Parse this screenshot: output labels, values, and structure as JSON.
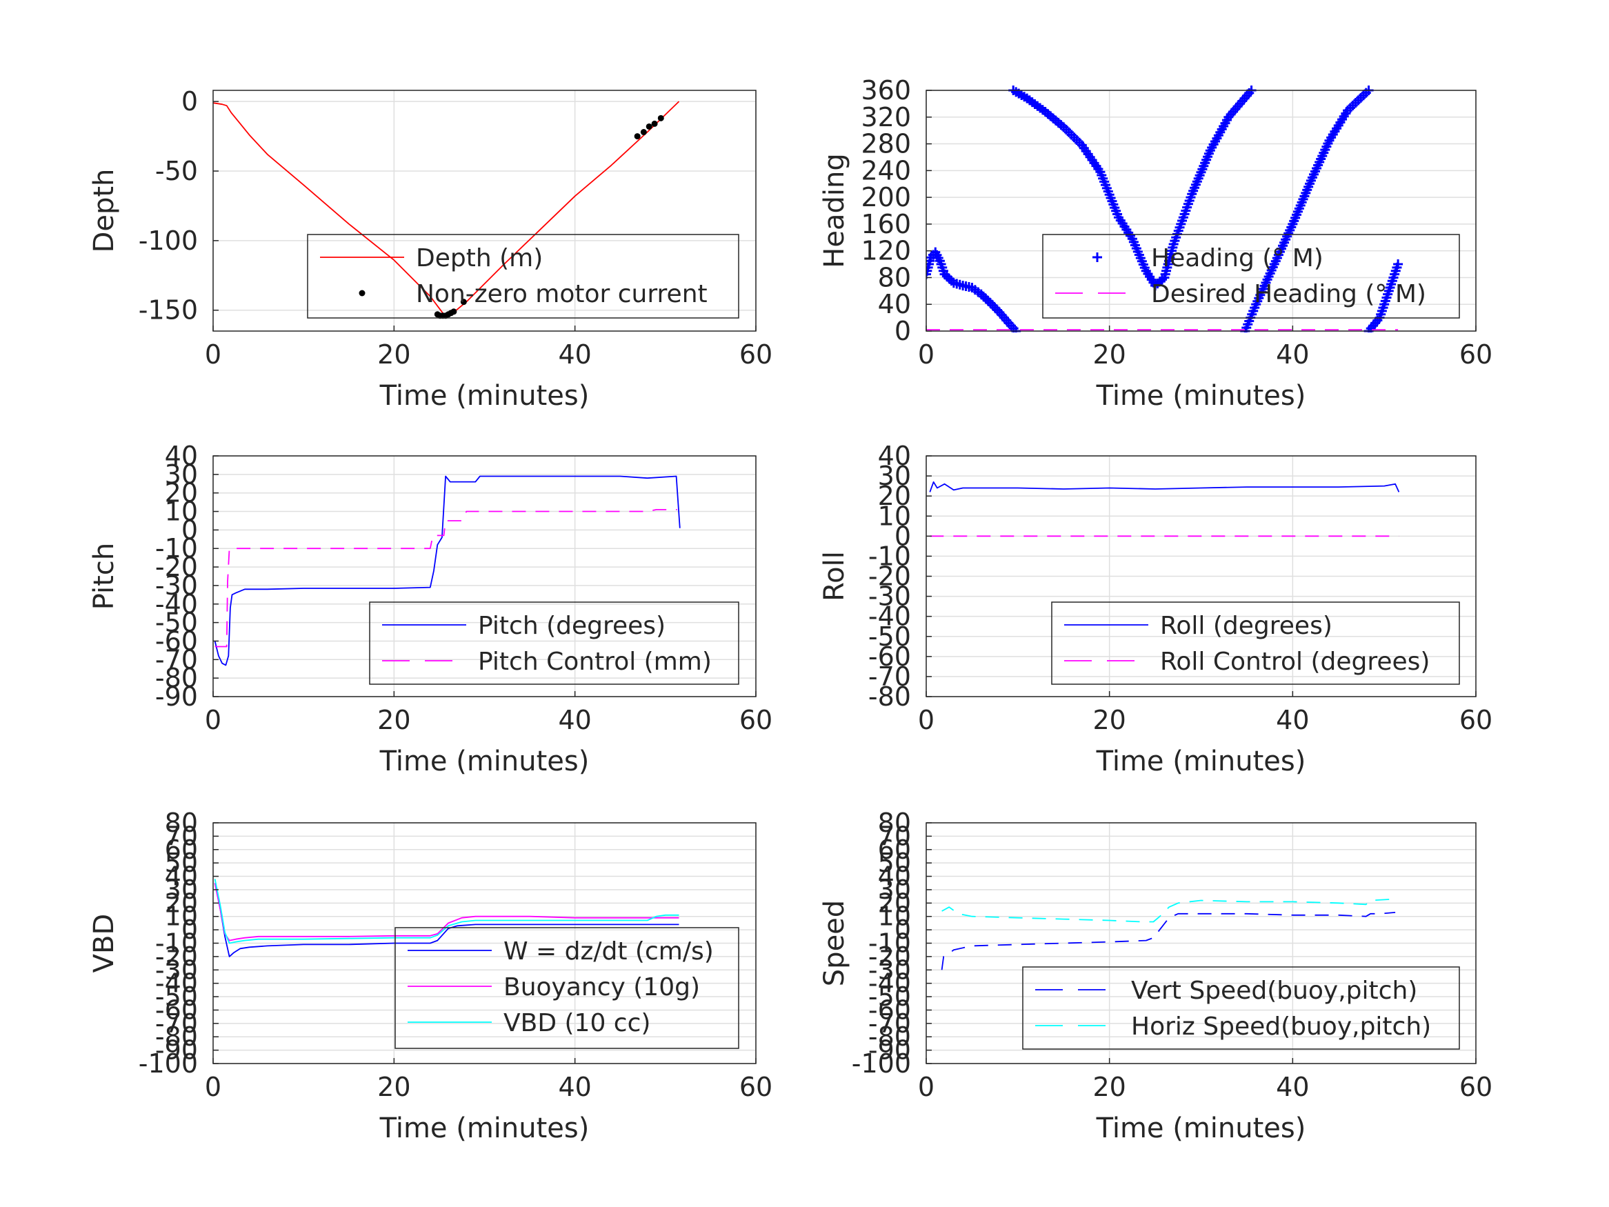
{
  "figure": {
    "background": "#ffffff",
    "grid": true
  },
  "chart_data": [
    {
      "id": "depth",
      "type": "line",
      "xlabel": "Time (minutes)",
      "ylabel": "Depth",
      "xlim": [
        0,
        60
      ],
      "ylim": [
        -165,
        8
      ],
      "xticks": [
        "0",
        "20",
        "40",
        "60"
      ],
      "yticks": [
        {
          "v": 0,
          "label": "0"
        },
        {
          "v": -50,
          "label": "-50"
        },
        {
          "v": -100,
          "label": "-100"
        },
        {
          "v": -150,
          "label": "-150"
        }
      ],
      "legend": {
        "position": "lower-right",
        "entries": [
          "Depth (m)",
          "Non-zero motor current"
        ]
      },
      "series": [
        {
          "name": "Depth (m)",
          "style": "line",
          "color": "#ff0000",
          "x": [
            0,
            1.0,
            1.5,
            2.0,
            3.0,
            4.0,
            6.0,
            10.0,
            15.0,
            20.0,
            24.0,
            25.5,
            26.5,
            28.0,
            32.0,
            36.0,
            40.0,
            44.0,
            48.0,
            51.5
          ],
          "y": [
            -1,
            -2,
            -3,
            -8,
            -16,
            -24,
            -38,
            -60,
            -88,
            -114,
            -140,
            -153,
            -152,
            -144,
            -118,
            -93,
            -68,
            -46,
            -22,
            0
          ]
        },
        {
          "name": "Non-zero motor current",
          "style": "dots",
          "color": "#000000",
          "x": [
            24.8,
            25.1,
            25.4,
            25.7,
            26.0,
            26.3,
            26.6,
            27.7,
            46.9,
            47.6,
            48.2,
            48.8,
            49.5
          ],
          "y": [
            -153,
            -154,
            -154,
            -154,
            -153,
            -152,
            -151,
            -144,
            -25,
            -22,
            -18,
            -16,
            -12
          ]
        }
      ]
    },
    {
      "id": "heading",
      "type": "scatter",
      "xlabel": "Time (minutes)",
      "ylabel": "Heading",
      "xlim": [
        0,
        60
      ],
      "ylim": [
        0,
        360
      ],
      "xticks": [
        "0",
        "20",
        "40",
        "60"
      ],
      "yticks": [
        {
          "v": 0,
          "label": "0"
        },
        {
          "v": 40,
          "label": "40"
        },
        {
          "v": 80,
          "label": "80"
        },
        {
          "v": 120,
          "label": "120"
        },
        {
          "v": 160,
          "label": "160"
        },
        {
          "v": 200,
          "label": "200"
        },
        {
          "v": 240,
          "label": "240"
        },
        {
          "v": 280,
          "label": "280"
        },
        {
          "v": 320,
          "label": "320"
        },
        {
          "v": 360,
          "label": "360"
        }
      ],
      "legend": {
        "position": "lower-right",
        "entries": [
          "Heading (° M)",
          "Desired Heading (° M)"
        ]
      },
      "series": [
        {
          "name": "Heading (° M)",
          "style": "plus",
          "color": "#0000ff",
          "segments": [
            {
              "x": [
                0,
                0.5,
                1.0,
                1.5,
                2.0,
                3.0,
                4.0,
                5.0,
                6.0,
                7.0,
                8.0,
                9.0,
                9.8
              ],
              "y": [
                85,
                110,
                118,
                105,
                85,
                72,
                68,
                65,
                55,
                42,
                28,
                12,
                0
              ]
            },
            {
              "x": [
                9.5,
                11,
                13,
                15,
                17,
                19,
                21,
                22.5,
                24,
                25,
                26,
                27,
                29,
                31,
                33,
                35.5
              ],
              "y": [
                360,
                348,
                328,
                305,
                278,
                238,
                170,
                138,
                90,
                68,
                80,
                130,
                205,
                270,
                320,
                360
              ]
            },
            {
              "x": [
                34.8,
                36,
                38,
                40,
                42,
                44,
                46,
                48.3
              ],
              "y": [
                0,
                40,
                100,
                160,
                225,
                285,
                330,
                360
              ]
            },
            {
              "x": [
                48.3,
                49.5,
                50.5,
                51.5
              ],
              "y": [
                0,
                20,
                60,
                100
              ]
            }
          ]
        },
        {
          "name": "Desired Heading (° M)",
          "style": "dashed",
          "color": "#ff00ff",
          "x": [
            0,
            51.5
          ],
          "y": [
            2,
            2
          ]
        }
      ]
    },
    {
      "id": "pitch",
      "type": "line",
      "xlabel": "Time (minutes)",
      "ylabel": "Pitch",
      "xlim": [
        0,
        60
      ],
      "ylim": [
        -90,
        40
      ],
      "xticks": [
        "0",
        "20",
        "40",
        "60"
      ],
      "yticks": [
        {
          "v": 40,
          "label": "40"
        },
        {
          "v": 30,
          "label": "30"
        },
        {
          "v": 20,
          "label": "20"
        },
        {
          "v": 10,
          "label": "10"
        },
        {
          "v": 0,
          "label": "0"
        },
        {
          "v": -10,
          "label": "-10"
        },
        {
          "v": -20,
          "label": "-20"
        },
        {
          "v": -30,
          "label": "-30"
        },
        {
          "v": -40,
          "label": "-40"
        },
        {
          "v": -50,
          "label": "-50"
        },
        {
          "v": -60,
          "label": "-60"
        },
        {
          "v": -70,
          "label": "-70"
        },
        {
          "v": -80,
          "label": "-80"
        },
        {
          "v": -90,
          "label": "-90"
        }
      ],
      "legend": {
        "position": "lower-right",
        "entries": [
          "Pitch (degrees)",
          "Pitch Control (mm)"
        ]
      },
      "series": [
        {
          "name": "Pitch (degrees)",
          "style": "line",
          "color": "#0000ff",
          "x": [
            0.2,
            0.6,
            1.0,
            1.4,
            1.7,
            1.9,
            2.1,
            2.5,
            3.5,
            6,
            10,
            15,
            20,
            24,
            24.4,
            24.8,
            25.3,
            25.7,
            26.2,
            29,
            29.5,
            35,
            40,
            45,
            48,
            51.2,
            51.6
          ],
          "y": [
            -60,
            -68,
            -72,
            -73,
            -68,
            -42,
            -35,
            -34,
            -32,
            -32,
            -31.5,
            -31.5,
            -31.5,
            -31,
            -22,
            -8,
            -4,
            29,
            26,
            26,
            29,
            29,
            29,
            29,
            28,
            29,
            1
          ]
        },
        {
          "name": "Pitch Control (mm)",
          "style": "dashed",
          "color": "#ff00ff",
          "x": [
            0.2,
            1.5,
            1.6,
            1.8,
            24,
            24.3,
            25.5,
            25.7,
            27.5,
            28,
            40,
            48,
            49,
            51.3
          ],
          "y": [
            -63,
            -63,
            -28,
            -10,
            -10,
            -3,
            -3,
            5,
            5,
            10,
            10,
            10,
            11,
            11
          ]
        }
      ]
    },
    {
      "id": "roll",
      "type": "line",
      "xlabel": "Time (minutes)",
      "ylabel": "Roll",
      "xlim": [
        0,
        60
      ],
      "ylim": [
        -80,
        40
      ],
      "xticks": [
        "0",
        "20",
        "40",
        "60"
      ],
      "yticks": [
        {
          "v": 40,
          "label": "40"
        },
        {
          "v": 30,
          "label": "30"
        },
        {
          "v": 20,
          "label": "20"
        },
        {
          "v": 10,
          "label": "10"
        },
        {
          "v": 0,
          "label": "0"
        },
        {
          "v": -10,
          "label": "-10"
        },
        {
          "v": -20,
          "label": "-20"
        },
        {
          "v": -30,
          "label": "-30"
        },
        {
          "v": -40,
          "label": "-40"
        },
        {
          "v": -50,
          "label": "-50"
        },
        {
          "v": -60,
          "label": "-60"
        },
        {
          "v": -70,
          "label": "-70"
        },
        {
          "v": -80,
          "label": "-80"
        }
      ],
      "legend": {
        "position": "lower-right",
        "entries": [
          "Roll (degrees)",
          "Roll Control (degrees)"
        ]
      },
      "series": [
        {
          "name": "Roll (degrees)",
          "style": "line",
          "color": "#0000ff",
          "x": [
            0.4,
            0.8,
            1.2,
            2,
            3,
            4,
            6,
            10,
            15,
            20,
            25,
            30,
            35,
            40,
            45,
            50,
            51.2,
            51.6
          ],
          "y": [
            22,
            27,
            24,
            26,
            23,
            24,
            24,
            24,
            23.5,
            24,
            23.5,
            24,
            24.5,
            24.5,
            24.5,
            25,
            26,
            22
          ]
        },
        {
          "name": "Roll Control (degrees)",
          "style": "dashed",
          "color": "#ff00ff",
          "x": [
            0.4,
            51.6
          ],
          "y": [
            0,
            0
          ]
        }
      ]
    },
    {
      "id": "vbd",
      "type": "line",
      "xlabel": "Time (minutes)",
      "ylabel": "VBD",
      "xlim": [
        0,
        60
      ],
      "ylim": [
        -100,
        80
      ],
      "xticks": [
        "0",
        "20",
        "40",
        "60"
      ],
      "yticks": [
        {
          "v": 80,
          "label": "80"
        },
        {
          "v": 70,
          "label": "70"
        },
        {
          "v": 60,
          "label": "60"
        },
        {
          "v": 50,
          "label": "50"
        },
        {
          "v": 40,
          "label": "40"
        },
        {
          "v": 30,
          "label": "30"
        },
        {
          "v": 20,
          "label": "20"
        },
        {
          "v": 10,
          "label": "10"
        },
        {
          "v": 0,
          "label": "0"
        },
        {
          "v": -10,
          "label": "-10"
        },
        {
          "v": -20,
          "label": "-20"
        },
        {
          "v": -30,
          "label": "-30"
        },
        {
          "v": -40,
          "label": "-40"
        },
        {
          "v": -50,
          "label": "-50"
        },
        {
          "v": -60,
          "label": "-60"
        },
        {
          "v": -70,
          "label": "-70"
        },
        {
          "v": -80,
          "label": "-80"
        },
        {
          "v": -90,
          "label": "-90"
        },
        {
          "v": -100,
          "label": "-100"
        }
      ],
      "legend": {
        "position": "lower-right",
        "entries": [
          "W = dz/dt (cm/s)",
          "Buoyancy (10g)",
          "VBD (10 cc)"
        ]
      },
      "series": [
        {
          "name": "W = dz/dt (cm/s)",
          "style": "line",
          "color": "#0000ff",
          "x": [
            0.2,
            0.8,
            1.3,
            1.8,
            2.3,
            3,
            4,
            6,
            10,
            15,
            20,
            24,
            24.8,
            26,
            27,
            29,
            35,
            40,
            45,
            50,
            51.5
          ],
          "y": [
            35,
            15,
            -5,
            -20,
            -17,
            -14,
            -13,
            -12,
            -11,
            -11,
            -10,
            -10,
            -8,
            1,
            3,
            4,
            4,
            4,
            4,
            4,
            4
          ]
        },
        {
          "name": "Buoyancy (10g)",
          "style": "line",
          "color": "#ff00ff",
          "x": [
            0.2,
            0.8,
            1.3,
            1.8,
            2.5,
            3.5,
            5,
            10,
            15,
            20,
            24,
            24.8,
            26,
            27.5,
            29,
            35,
            40,
            45,
            48,
            50,
            51.5
          ],
          "y": [
            35,
            15,
            -3,
            -8,
            -7,
            -6,
            -5,
            -5,
            -5,
            -4.5,
            -4.5,
            -3,
            5,
            9,
            10,
            10,
            9,
            9,
            9,
            9,
            9
          ]
        },
        {
          "name": "VBD (10 cc)",
          "style": "line",
          "color": "#00ffff",
          "x": [
            0.2,
            0.8,
            1.3,
            1.8,
            2.5,
            3.5,
            5,
            10,
            15,
            20,
            24,
            24.8,
            26,
            27.5,
            29,
            35,
            40,
            45,
            48,
            49,
            50,
            51.5
          ],
          "y": [
            38,
            18,
            -2,
            -10,
            -9,
            -8,
            -7,
            -7,
            -6.5,
            -6,
            -6,
            -4,
            3,
            6,
            7,
            7,
            7,
            7,
            7,
            10,
            11,
            11
          ]
        }
      ]
    },
    {
      "id": "speed",
      "type": "line",
      "xlabel": "Time (minutes)",
      "ylabel": "Speed",
      "xlim": [
        0,
        60
      ],
      "ylim": [
        -100,
        80
      ],
      "xticks": [
        "0",
        "20",
        "40",
        "60"
      ],
      "yticks": [
        {
          "v": 80,
          "label": "80"
        },
        {
          "v": 70,
          "label": "70"
        },
        {
          "v": 60,
          "label": "60"
        },
        {
          "v": 50,
          "label": "50"
        },
        {
          "v": 40,
          "label": "40"
        },
        {
          "v": 30,
          "label": "30"
        },
        {
          "v": 20,
          "label": "20"
        },
        {
          "v": 10,
          "label": "10"
        },
        {
          "v": 0,
          "label": "0"
        },
        {
          "v": -10,
          "label": "-10"
        },
        {
          "v": -20,
          "label": "-20"
        },
        {
          "v": -30,
          "label": "-30"
        },
        {
          "v": -40,
          "label": "-40"
        },
        {
          "v": -50,
          "label": "-50"
        },
        {
          "v": -60,
          "label": "-60"
        },
        {
          "v": -70,
          "label": "-70"
        },
        {
          "v": -80,
          "label": "-80"
        },
        {
          "v": -90,
          "label": "-90"
        },
        {
          "v": -100,
          "label": "-100"
        }
      ],
      "legend": {
        "position": "lower-right",
        "entries": [
          "Vert Speed(buoy,pitch)",
          "Horiz Speed(buoy,pitch)"
        ]
      },
      "series": [
        {
          "name": "Vert Speed(buoy,pitch)",
          "style": "dashed",
          "color": "#0000ff",
          "x": [
            1.7,
            1.9,
            2.3,
            3,
            5,
            10,
            15,
            20,
            24,
            24.8,
            26.5,
            27.5,
            30,
            35,
            40,
            45,
            48,
            48.5,
            49.5,
            51.2
          ],
          "y": [
            -30,
            -20,
            -19,
            -15,
            -12,
            -11,
            -10,
            -9,
            -8,
            -6,
            9,
            12,
            12,
            12,
            11,
            11,
            10,
            12,
            12,
            13
          ]
        },
        {
          "name": "Horiz Speed(buoy,pitch)",
          "style": "dashed",
          "color": "#00ffff",
          "x": [
            1.7,
            2.5,
            3.5,
            5,
            10,
            15,
            20,
            23.5,
            24.8,
            25.5,
            26.5,
            27.5,
            30,
            35,
            40,
            45,
            48,
            48.5,
            51.2
          ],
          "y": [
            14,
            17,
            12,
            10,
            9,
            8,
            7,
            6,
            6,
            10,
            17,
            20,
            22,
            21,
            21,
            20,
            19,
            22,
            23
          ]
        }
      ]
    }
  ]
}
